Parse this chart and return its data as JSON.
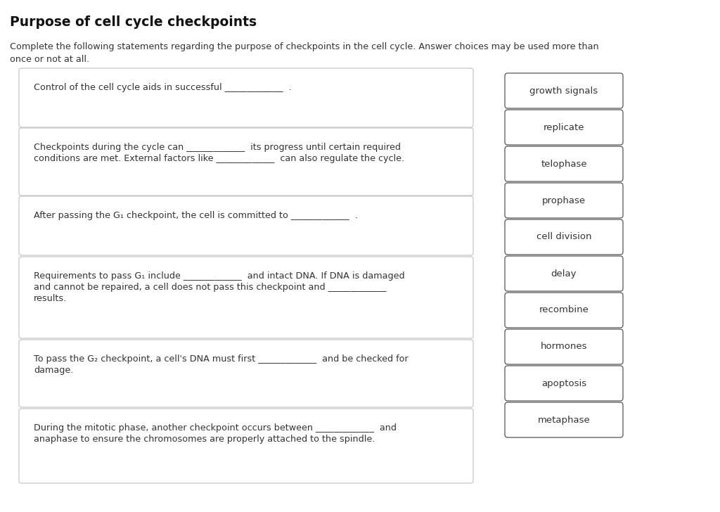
{
  "title": "Purpose of cell cycle checkpoints",
  "subtitle1": "Complete the following statements regarding the purpose of checkpoints in the cell cycle. Answer choices may be used more than",
  "subtitle2": "once or not at all.",
  "background_color": "#ffffff",
  "title_color": "#111111",
  "text_color": "#333333",
  "box_border": "#c0c0c0",
  "answer_box_border": "#555555",
  "questions": [
    {
      "lines": [
        "Control of the cell cycle aids in successful _____________  ."
      ]
    },
    {
      "lines": [
        "Checkpoints during the cycle can _____________  its progress until certain required",
        "conditions are met. External factors like _____________  can also regulate the cycle."
      ]
    },
    {
      "lines": [
        "After passing the G₁ checkpoint, the cell is committed to _____________  ."
      ]
    },
    {
      "lines": [
        "Requirements to pass G₁ include _____________  and intact DNA. If DNA is damaged",
        "and cannot be repaired, a cell does not pass this checkpoint and _____________",
        "results."
      ]
    },
    {
      "lines": [
        "To pass the G₂ checkpoint, a cell's DNA must first _____________  and be checked for",
        "damage."
      ]
    },
    {
      "lines": [
        "During the mitotic phase, another checkpoint occurs between _____________  and",
        "anaphase to ensure the chromosomes are properly attached to the spindle."
      ]
    }
  ],
  "answer_choices": [
    "growth signals",
    "replicate",
    "telophase",
    "prophase",
    "cell division",
    "delay",
    "recombine",
    "hormones",
    "apoptosis",
    "metaphase"
  ]
}
